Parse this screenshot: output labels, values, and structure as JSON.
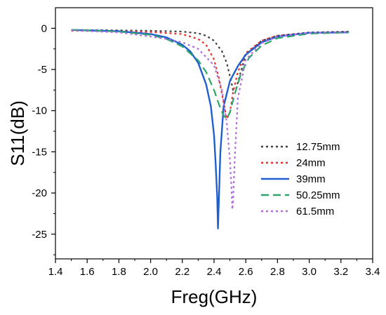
{
  "chart_data": {
    "type": "line",
    "title": "",
    "xlabel": "Freg(GHz)",
    "ylabel": "S11(dB)",
    "xlim": [
      1.4,
      3.4
    ],
    "ylim": [
      -28,
      2.5
    ],
    "xticks": [
      1.4,
      1.6,
      1.8,
      2.0,
      2.2,
      2.4,
      2.6,
      2.8,
      3.0,
      3.2,
      3.4
    ],
    "xtick_labels": [
      "1.4",
      "1.6",
      "1.8",
      "2.0",
      "2.2",
      "2.4",
      "2.6",
      "2.8",
      "3.0",
      "3.2",
      "3.4"
    ],
    "yticks": [
      0,
      -5,
      -10,
      -15,
      -20,
      -25
    ],
    "ytick_labels": [
      "0",
      "-5",
      "-10",
      "-15",
      "-20",
      "-25"
    ],
    "grid": false,
    "legend_position": "middle-right",
    "series": [
      {
        "name": "12.75mm",
        "color": "#404040",
        "dash": "dot",
        "x": [
          1.5,
          1.8,
          2.0,
          2.2,
          2.3,
          2.35,
          2.4,
          2.45,
          2.48,
          2.5,
          2.52,
          2.54,
          2.57,
          2.6,
          2.7,
          2.8,
          3.0,
          3.25
        ],
        "y": [
          -0.2,
          -0.25,
          -0.3,
          -0.4,
          -0.6,
          -0.9,
          -1.5,
          -2.8,
          -4.2,
          -5.8,
          -7.5,
          -7.3,
          -5.2,
          -3.2,
          -1.5,
          -0.9,
          -0.5,
          -0.4
        ]
      },
      {
        "name": "24mm",
        "color": "#e8302a",
        "dash": "dot",
        "x": [
          1.5,
          1.8,
          2.0,
          2.2,
          2.3,
          2.35,
          2.4,
          2.43,
          2.46,
          2.48,
          2.5,
          2.52,
          2.55,
          2.6,
          2.7,
          2.8,
          3.0,
          3.25
        ],
        "y": [
          -0.3,
          -0.35,
          -0.45,
          -0.7,
          -1.3,
          -2.0,
          -3.8,
          -6.0,
          -9.0,
          -11.0,
          -10.2,
          -7.8,
          -5.3,
          -3.0,
          -1.5,
          -0.9,
          -0.55,
          -0.45
        ]
      },
      {
        "name": "39mm",
        "color": "#1f5fcf",
        "dash": "solid",
        "x": [
          1.5,
          1.8,
          2.0,
          2.1,
          2.2,
          2.25,
          2.3,
          2.35,
          2.38,
          2.4,
          2.41,
          2.42,
          2.425,
          2.43,
          2.44,
          2.46,
          2.5,
          2.55,
          2.6,
          2.7,
          2.8,
          3.0,
          3.25
        ],
        "y": [
          -0.2,
          -0.35,
          -0.7,
          -1.1,
          -2.0,
          -2.8,
          -4.2,
          -6.8,
          -9.5,
          -13.0,
          -16.5,
          -20.5,
          -24.3,
          -21.0,
          -15.0,
          -9.5,
          -6.4,
          -4.6,
          -3.2,
          -1.7,
          -1.0,
          -0.55,
          -0.5
        ]
      },
      {
        "name": "50.25mm",
        "color": "#2ea56b",
        "dash": "dash",
        "x": [
          1.5,
          1.8,
          2.0,
          2.1,
          2.2,
          2.3,
          2.35,
          2.4,
          2.43,
          2.46,
          2.48,
          2.5,
          2.53,
          2.57,
          2.62,
          2.7,
          2.8,
          3.0,
          3.25
        ],
        "y": [
          -0.2,
          -0.4,
          -0.8,
          -1.3,
          -2.2,
          -3.9,
          -5.3,
          -7.5,
          -9.2,
          -10.6,
          -11.0,
          -10.2,
          -8.0,
          -5.5,
          -3.6,
          -2.1,
          -1.2,
          -0.65,
          -0.5
        ]
      },
      {
        "name": "61.5mm",
        "color": "#b06be0",
        "dash": "dot",
        "x": [
          1.5,
          1.8,
          2.0,
          2.1,
          2.2,
          2.3,
          2.4,
          2.45,
          2.48,
          2.5,
          2.51,
          2.515,
          2.52,
          2.53,
          2.55,
          2.6,
          2.7,
          2.8,
          3.0,
          3.25
        ],
        "y": [
          -0.25,
          -0.5,
          -1.0,
          -1.3,
          -1.7,
          -2.5,
          -4.5,
          -7.5,
          -11.5,
          -16.0,
          -19.5,
          -22.0,
          -21.0,
          -16.0,
          -8.5,
          -3.8,
          -1.8,
          -1.0,
          -0.55,
          -0.45
        ]
      }
    ]
  }
}
